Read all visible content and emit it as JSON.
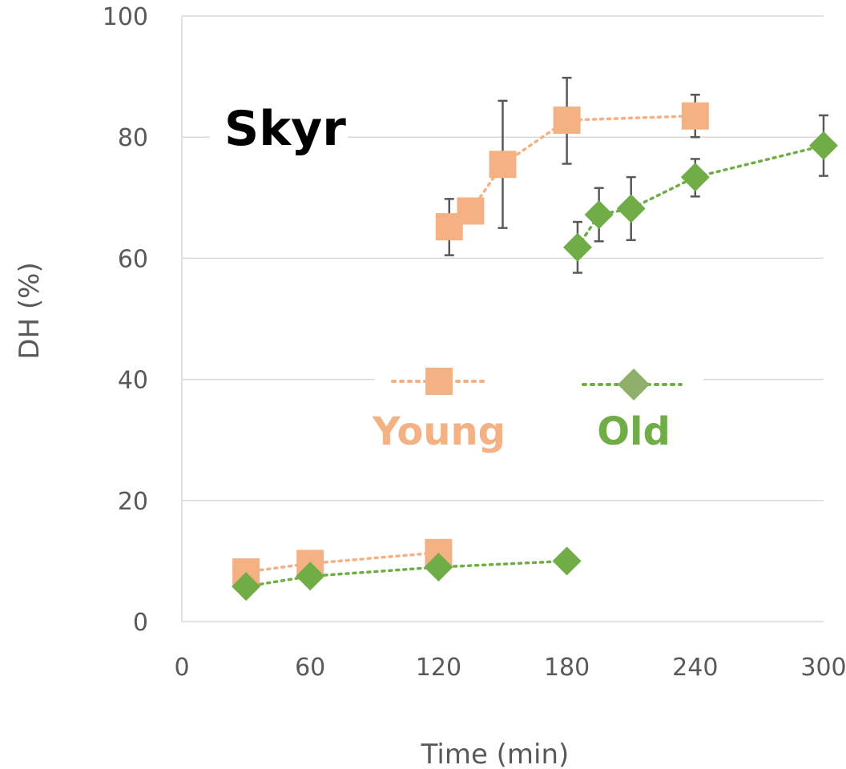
{
  "chart_data": {
    "type": "scatter",
    "title": "Skyr",
    "xlabel": "Time (min)",
    "ylabel": "DH (%)",
    "xlim": [
      0,
      300
    ],
    "ylim": [
      0,
      100
    ],
    "xticks": [
      "0",
      "60",
      "120",
      "180",
      "240",
      "300"
    ],
    "yticks": [
      "0",
      "20",
      "40",
      "60",
      "80",
      "100"
    ],
    "grid": "horizontal",
    "legend_position": "center",
    "series": [
      {
        "name": "Young",
        "color": "#F4B183",
        "marker": "square",
        "line": "dotted",
        "segments": [
          [
            {
              "x": 30,
              "y": 8.2
            },
            {
              "x": 60,
              "y": 9.6
            },
            {
              "x": 120,
              "y": 11.4
            }
          ],
          [
            {
              "x": 125,
              "y": 65.2,
              "err": [
                60.5,
                69.8
              ]
            },
            {
              "x": 135,
              "y": 67.8
            },
            {
              "x": 150,
              "y": 75.5,
              "err": [
                65.0,
                86.0
              ]
            },
            {
              "x": 180,
              "y": 82.8,
              "err": [
                75.6,
                89.8
              ]
            },
            {
              "x": 240,
              "y": 83.5,
              "err": [
                80.0,
                87.0
              ]
            }
          ]
        ]
      },
      {
        "name": "Old",
        "color": "#70AD47",
        "marker": "diamond",
        "line": "dotted",
        "segments": [
          [
            {
              "x": 30,
              "y": 5.8
            },
            {
              "x": 60,
              "y": 7.5
            },
            {
              "x": 120,
              "y": 9.0
            },
            {
              "x": 180,
              "y": 10.0
            }
          ],
          [
            {
              "x": 185,
              "y": 61.8,
              "err": [
                57.6,
                66.0
              ]
            },
            {
              "x": 195,
              "y": 67.2,
              "err": [
                62.8,
                71.6
              ]
            },
            {
              "x": 210,
              "y": 68.2,
              "err": [
                63.0,
                73.4
              ]
            },
            {
              "x": 240,
              "y": 73.4,
              "err": [
                70.2,
                76.4
              ]
            },
            {
              "x": 300,
              "y": 78.6,
              "err": [
                73.6,
                83.6
              ]
            }
          ]
        ]
      }
    ]
  }
}
